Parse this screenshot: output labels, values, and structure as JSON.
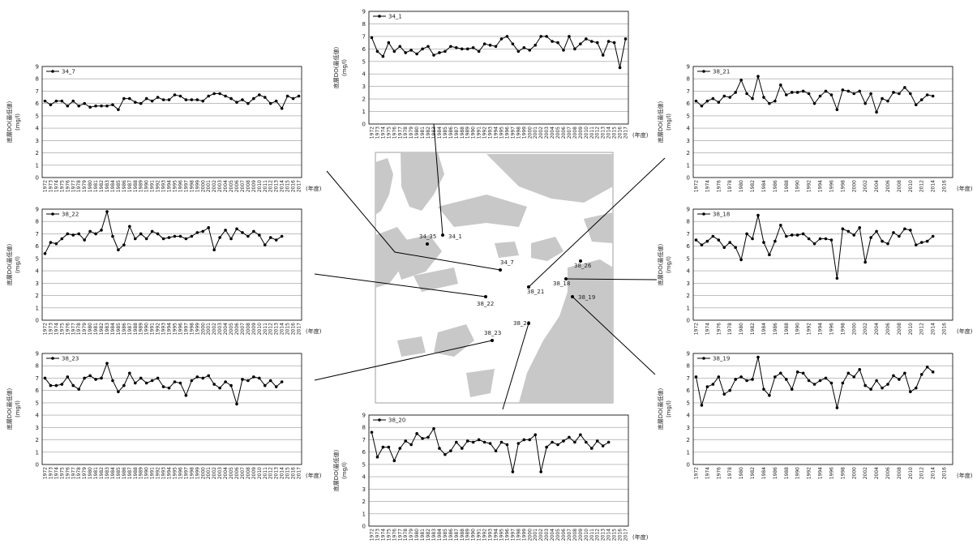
{
  "chart_data": [
    {
      "type": "line",
      "series": [
        {
          "name": "34_1",
          "color": "#000000",
          "values": [
            6.9,
            5.8,
            5.4,
            6.5,
            5.8,
            6.2,
            5.7,
            5.9,
            5.6,
            6.0,
            6.2,
            5.5,
            5.7,
            5.8,
            6.2,
            6.1,
            6.0,
            6.0,
            6.1,
            5.8,
            6.4,
            6.3,
            6.2,
            6.8,
            7.0,
            6.4,
            5.8,
            6.1,
            5.9,
            6.3,
            7.0,
            7.0,
            6.6,
            6.5,
            5.9,
            7.0,
            6.0,
            6.4,
            6.8,
            6.6,
            6.5,
            5.5,
            6.6,
            6.5,
            4.5,
            6.8
          ]
        }
      ],
      "categories": [
        "1972",
        "1973",
        "1974",
        "1975",
        "1976",
        "1977",
        "1978",
        "1979",
        "1980",
        "1981",
        "1982",
        "1983",
        "1984",
        "1985",
        "1986",
        "1987",
        "1988",
        "1989",
        "1990",
        "1991",
        "1992",
        "1993",
        "1994",
        "1995",
        "1996",
        "1997",
        "1998",
        "1999",
        "2000",
        "2001",
        "2002",
        "2003",
        "2004",
        "2005",
        "2006",
        "2007",
        "2008",
        "2009",
        "2010",
        "2011",
        "2012",
        "2013",
        "2014",
        "2015",
        "2016",
        "2017"
      ],
      "ylabel": [
        "底層DO(最低値)",
        "(mg/l)"
      ],
      "xlabel": "(年度)",
      "ylim": [
        0,
        9
      ],
      "yticks": [
        0,
        1,
        2,
        3,
        4,
        5,
        6,
        7,
        8,
        9
      ],
      "grid": true
    },
    {
      "type": "line",
      "series": [
        {
          "name": "34_7",
          "color": "#000000",
          "values": [
            6.2,
            5.9,
            6.2,
            6.2,
            5.8,
            6.2,
            5.8,
            6.0,
            5.7,
            5.8,
            5.8,
            5.8,
            5.9,
            5.5,
            6.4,
            6.4,
            6.1,
            6.0,
            6.4,
            6.2,
            6.5,
            6.3,
            6.3,
            6.7,
            6.6,
            6.3,
            6.3,
            6.3,
            6.2,
            6.6,
            6.8,
            6.8,
            6.6,
            6.4,
            6.1,
            6.3,
            6.0,
            6.4,
            6.7,
            6.5,
            6.0,
            6.2,
            5.6,
            6.6,
            6.4,
            6.6
          ]
        }
      ],
      "categories": [
        "1972",
        "1973",
        "1974",
        "1975",
        "1976",
        "1977",
        "1978",
        "1979",
        "1980",
        "1981",
        "1982",
        "1983",
        "1984",
        "1985",
        "1986",
        "1987",
        "1988",
        "1989",
        "1990",
        "1991",
        "1992",
        "1993",
        "1994",
        "1995",
        "1996",
        "1997",
        "1998",
        "1999",
        "2000",
        "2001",
        "2002",
        "2003",
        "2004",
        "2005",
        "2006",
        "2007",
        "2008",
        "2009",
        "2010",
        "2011",
        "2012",
        "2013",
        "2014",
        "2015",
        "2016",
        "2017"
      ],
      "ylabel": [
        "底層DO(最低値)",
        "(mg/l)"
      ],
      "xlabel": "(年度)",
      "ylim": [
        0,
        9
      ],
      "yticks": [
        0,
        1,
        2,
        3,
        4,
        5,
        6,
        7,
        8,
        9
      ],
      "grid": true
    },
    {
      "type": "line",
      "series": [
        {
          "name": "38_21",
          "color": "#000000",
          "values": [
            6.2,
            5.8,
            6.2,
            6.4,
            6.1,
            6.6,
            6.5,
            6.9,
            7.9,
            6.8,
            6.4,
            8.2,
            6.5,
            6.0,
            6.2,
            7.5,
            6.7,
            6.9,
            6.9,
            7.0,
            6.8,
            6.0,
            6.6,
            7.0,
            6.7,
            5.5,
            7.1,
            7.0,
            6.8,
            7.0,
            6.0,
            6.8,
            5.3,
            6.4,
            6.2,
            6.9,
            6.8,
            7.3,
            6.8,
            5.9,
            6.3,
            6.7,
            6.6,
            null,
            null,
            null
          ]
        }
      ],
      "categories": [
        "1972",
        null,
        "1974",
        null,
        "1976",
        null,
        "1978",
        null,
        "1980",
        null,
        "1982",
        null,
        "1984",
        null,
        "1986",
        null,
        "1988",
        null,
        "1990",
        null,
        "1992",
        null,
        "1994",
        null,
        "1996",
        null,
        "1998",
        null,
        "2000",
        null,
        "2002",
        null,
        "2004",
        null,
        "2006",
        null,
        "2008",
        null,
        "2010",
        null,
        "2012",
        null,
        "2014",
        null,
        "2016",
        null
      ],
      "ylabel": [
        "底層DO(最低値)",
        "(mg/l)"
      ],
      "xlabel": "(年度)",
      "ylim": [
        0,
        9
      ],
      "yticks": [
        0,
        1,
        2,
        3,
        4,
        5,
        6,
        7,
        8,
        9
      ],
      "grid": true
    },
    {
      "type": "line",
      "series": [
        {
          "name": "38_22",
          "color": "#000000",
          "values": [
            5.4,
            6.3,
            6.2,
            6.6,
            7.0,
            6.9,
            7.0,
            6.5,
            7.2,
            7.0,
            7.3,
            8.8,
            6.8,
            5.7,
            6.1,
            7.6,
            6.6,
            7.0,
            6.6,
            7.2,
            7.0,
            6.6,
            6.7,
            6.8,
            6.8,
            6.6,
            6.8,
            7.1,
            7.2,
            7.5,
            5.7,
            6.7,
            7.3,
            6.6,
            7.4,
            7.1,
            6.8,
            7.2,
            6.9,
            6.1,
            6.7,
            6.5,
            6.8,
            null,
            null,
            null
          ]
        }
      ],
      "categories": [
        "1972",
        "1973",
        "1974",
        "1975",
        "1976",
        "1977",
        "1978",
        "1979",
        "1980",
        "1981",
        "1982",
        "1983",
        "1984",
        "1985",
        "1986",
        "1987",
        "1988",
        "1989",
        "1990",
        "1991",
        "1992",
        "1993",
        "1994",
        "1995",
        "1996",
        "1997",
        "1998",
        "1999",
        "2000",
        "2001",
        "2002",
        "2003",
        "2004",
        "2005",
        "2006",
        "2007",
        "2008",
        "2009",
        "2010",
        "2011",
        "2012",
        "2013",
        "2014",
        "2015",
        "2016",
        "2017"
      ],
      "ylabel": [
        "底層DO(最低値)",
        "(mg/l)"
      ],
      "xlabel": "(年度)",
      "ylim": [
        0,
        9
      ],
      "yticks": [
        0,
        1,
        2,
        3,
        4,
        5,
        6,
        7,
        8,
        9
      ],
      "grid": true
    },
    {
      "type": "line",
      "series": [
        {
          "name": "38_18",
          "color": "#000000",
          "values": [
            6.5,
            6.1,
            6.4,
            6.8,
            6.5,
            5.9,
            6.3,
            5.9,
            4.9,
            7.0,
            6.6,
            8.5,
            6.3,
            5.3,
            6.4,
            7.7,
            6.8,
            6.9,
            6.9,
            7.0,
            6.6,
            6.2,
            6.6,
            6.6,
            6.5,
            3.4,
            7.4,
            7.2,
            6.9,
            7.5,
            4.7,
            6.7,
            7.2,
            6.4,
            6.2,
            7.1,
            6.8,
            7.4,
            7.3,
            6.1,
            6.3,
            6.4,
            6.8,
            null,
            null,
            null
          ]
        }
      ],
      "categories": [
        "1972",
        null,
        "1974",
        null,
        "1976",
        null,
        "1978",
        null,
        "1980",
        null,
        "1982",
        null,
        "1984",
        null,
        "1986",
        null,
        "1988",
        null,
        "1990",
        null,
        "1992",
        null,
        "1994",
        null,
        "1996",
        null,
        "1998",
        null,
        "2000",
        null,
        "2002",
        null,
        "2004",
        null,
        "2006",
        null,
        "2008",
        null,
        "2010",
        null,
        "2012",
        null,
        "2014",
        null,
        "2016",
        null
      ],
      "ylabel": [
        "底層DO(最低値)",
        "(mg/l)"
      ],
      "xlabel": "(年度)",
      "ylim": [
        0,
        9
      ],
      "yticks": [
        0,
        1,
        2,
        3,
        4,
        5,
        6,
        7,
        8,
        9
      ],
      "grid": true
    },
    {
      "type": "line",
      "series": [
        {
          "name": "38_23",
          "color": "#000000",
          "values": [
            7.0,
            6.4,
            6.4,
            6.5,
            7.1,
            6.4,
            6.1,
            7.0,
            7.2,
            6.9,
            7.0,
            8.2,
            6.8,
            5.9,
            6.4,
            7.4,
            6.6,
            7.0,
            6.6,
            6.8,
            7.0,
            6.3,
            6.2,
            6.7,
            6.6,
            5.6,
            6.8,
            7.1,
            7.0,
            7.2,
            6.5,
            6.2,
            6.7,
            6.4,
            4.9,
            6.9,
            6.8,
            7.1,
            7.0,
            6.4,
            6.8,
            6.3,
            6.7,
            null,
            null,
            null
          ]
        }
      ],
      "categories": [
        "1972",
        "1973",
        "1974",
        "1975",
        "1976",
        "1977",
        "1978",
        "1979",
        "1980",
        "1981",
        "1982",
        "1983",
        "1984",
        "1985",
        "1986",
        "1987",
        "1988",
        "1989",
        "1990",
        "1991",
        "1992",
        "1993",
        "1994",
        "1995",
        "1996",
        "1997",
        "1998",
        "1999",
        "2000",
        "2001",
        "2002",
        "2003",
        "2004",
        "2005",
        "2006",
        "2007",
        "2008",
        "2009",
        "2010",
        "2011",
        "2012",
        "2013",
        "2014",
        "2015",
        "2016",
        "2017"
      ],
      "ylabel": [
        "底層DO(最低値)",
        "(mg/l)"
      ],
      "xlabel": "(年度)",
      "ylim": [
        0,
        9
      ],
      "yticks": [
        0,
        1,
        2,
        3,
        4,
        5,
        6,
        7,
        8,
        9
      ],
      "grid": true
    },
    {
      "type": "line",
      "series": [
        {
          "name": "38_19",
          "color": "#000000",
          "values": [
            7.1,
            4.8,
            6.3,
            6.5,
            7.1,
            5.7,
            6.0,
            6.9,
            7.1,
            6.8,
            6.9,
            8.7,
            6.1,
            5.6,
            7.1,
            7.4,
            6.9,
            6.1,
            7.5,
            7.4,
            6.8,
            6.5,
            6.8,
            7.0,
            6.6,
            4.6,
            6.6,
            7.4,
            7.1,
            7.7,
            6.4,
            6.1,
            6.8,
            6.2,
            6.5,
            7.2,
            6.9,
            7.4,
            5.9,
            6.2,
            7.3,
            7.9,
            7.5,
            null,
            null,
            null
          ]
        }
      ],
      "categories": [
        "1972",
        null,
        "1974",
        null,
        "1976",
        null,
        "1978",
        null,
        "1980",
        null,
        "1982",
        null,
        "1984",
        null,
        "1986",
        null,
        "1988",
        null,
        "1990",
        null,
        "1992",
        null,
        "1994",
        null,
        "1996",
        null,
        "1998",
        null,
        "2000",
        null,
        "2002",
        null,
        "2004",
        null,
        "2006",
        null,
        "2008",
        null,
        "2010",
        null,
        "2012",
        null,
        "2014",
        null,
        "2016",
        null
      ],
      "ylabel": [
        "底層DO(最低値)",
        "(mg/l)"
      ],
      "xlabel": "(年度)",
      "ylim": [
        0,
        9
      ],
      "yticks": [
        0,
        1,
        2,
        3,
        4,
        5,
        6,
        7,
        8,
        9
      ],
      "grid": true
    },
    {
      "type": "line",
      "series": [
        {
          "name": "38_20",
          "color": "#000000",
          "values": [
            7.6,
            5.6,
            6.4,
            6.4,
            5.3,
            6.3,
            6.9,
            6.6,
            7.5,
            7.1,
            7.2,
            7.9,
            6.3,
            5.8,
            6.1,
            6.8,
            6.3,
            6.9,
            6.8,
            7.0,
            6.8,
            6.7,
            6.1,
            6.8,
            6.6,
            4.4,
            6.7,
            7.0,
            7.0,
            7.4,
            4.4,
            6.4,
            6.8,
            6.6,
            6.9,
            7.2,
            6.8,
            7.4,
            6.8,
            6.3,
            6.9,
            6.5,
            6.8,
            null,
            null,
            null
          ]
        }
      ],
      "categories": [
        "1972",
        "1973",
        "1974",
        "1975",
        "1976",
        "1977",
        "1978",
        "1979",
        "1980",
        "1981",
        "1982",
        "1983",
        "1984",
        "1985",
        "1986",
        "1987",
        "1988",
        "1989",
        "1990",
        "1991",
        "1992",
        "1993",
        "1994",
        "1995",
        "1996",
        "1997",
        "1998",
        "1999",
        "2000",
        "2001",
        "2002",
        "2003",
        "2004",
        "2005",
        "2006",
        "2007",
        "2008",
        "2009",
        "2010",
        "2011",
        "2012",
        "2013",
        "2014",
        "2015",
        "2016",
        "2017"
      ],
      "ylabel": [
        "底層DO(最低値)",
        "(mg/l)"
      ],
      "xlabel": "(年度)",
      "ylim": [
        0,
        9
      ],
      "yticks": [
        0,
        1,
        2,
        3,
        4,
        5,
        6,
        7,
        8,
        9
      ],
      "grid": true
    }
  ],
  "map": {
    "stations": [
      "34_35",
      "34_1",
      "34_7",
      "38_26",
      "38_18",
      "38_21",
      "38_22",
      "38_19",
      "38_20",
      "38_23"
    ]
  }
}
